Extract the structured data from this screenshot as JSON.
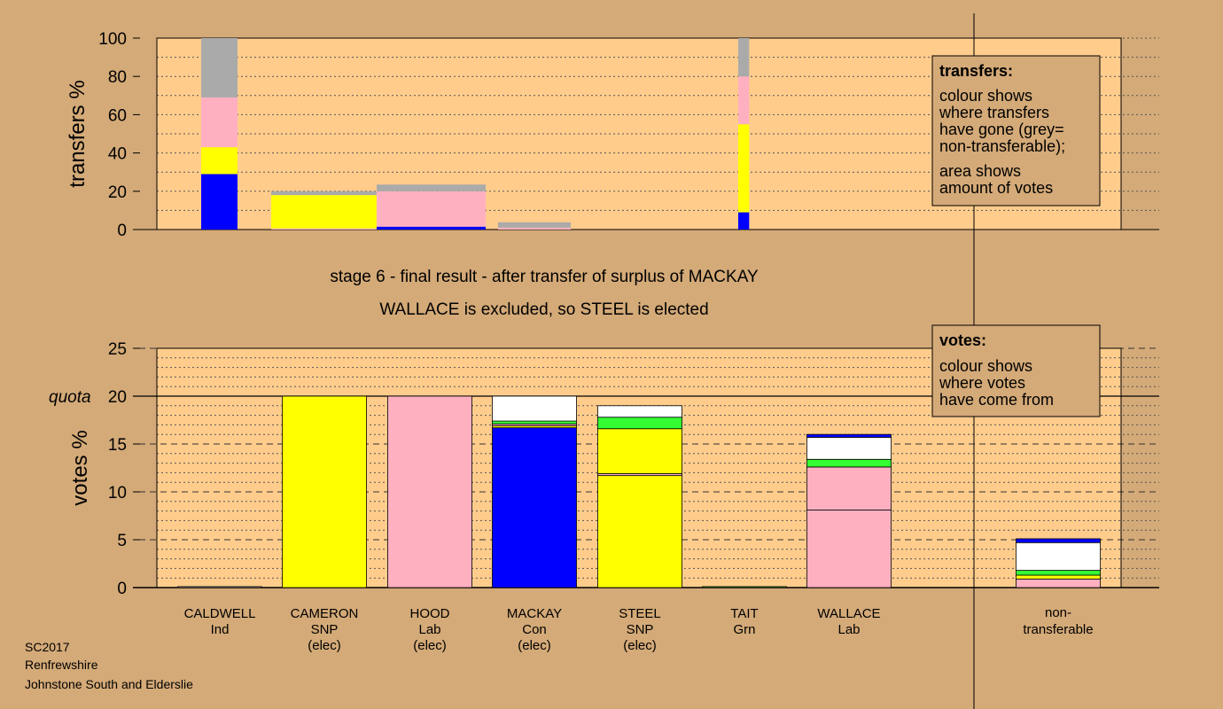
{
  "titles": {
    "stage": "stage 6 - final result - after transfer of surplus of MACKAY",
    "outcome": "WALLACE is excluded, so STEEL is elected"
  },
  "footer": [
    "SC2017",
    "Renfrewshire",
    "Johnstone South and Elderslie"
  ],
  "colors": {
    "background": "#d4aa78",
    "plot": "#ffcc8c",
    "Con": "#0000ff",
    "SNP": "#ffff00",
    "Lab": "#ffb0c0",
    "Grn": "#33ff33",
    "Ind": "#ffffff",
    "nontransferable": "#aaaaaa"
  },
  "legends": {
    "transfers": {
      "title": "transfers:",
      "lines": [
        "colour shows",
        "where transfers",
        "have gone (grey=",
        "non-transferable);",
        "area shows",
        "amount of votes"
      ]
    },
    "votes": {
      "title": "votes:",
      "lines": [
        "colour shows",
        "where votes",
        "have come from"
      ]
    }
  },
  "chart_data": [
    {
      "type": "bar",
      "stacked": true,
      "ylabel": "transfers %",
      "ylim": [
        0,
        100
      ],
      "yticks": [
        0,
        20,
        40,
        60,
        80,
        100
      ],
      "bars": [
        {
          "label": "CALDWELL",
          "width": 1.0,
          "segments": [
            {
              "party": "Con",
              "value": 29
            },
            {
              "party": "SNP",
              "value": 14
            },
            {
              "party": "Lab",
              "value": 26
            },
            {
              "party": "nontransferable",
              "value": 31
            }
          ]
        },
        {
          "label": "CAMERON",
          "width": 2.9,
          "segments": [
            {
              "party": "Lab",
              "value": 0.6
            },
            {
              "party": "SNP",
              "value": 17.4
            },
            {
              "party": "nontransferable",
              "value": 2
            }
          ]
        },
        {
          "label": "HOOD",
          "width": 3.0,
          "segments": [
            {
              "party": "Con",
              "value": 1.5
            },
            {
              "party": "Lab",
              "value": 18.5
            },
            {
              "party": "nontransferable",
              "value": 3.5
            }
          ]
        },
        {
          "label": "MACKAY",
          "width": 2.0,
          "segments": [
            {
              "party": "Lab",
              "value": 1
            },
            {
              "party": "nontransferable",
              "value": 2.8
            }
          ]
        },
        {
          "label": "TAIT",
          "width": 0.3,
          "segments": [
            {
              "party": "Con",
              "value": 9
            },
            {
              "party": "SNP",
              "value": 46
            },
            {
              "party": "Lab",
              "value": 25
            },
            {
              "party": "nontransferable",
              "value": 20
            }
          ]
        }
      ]
    },
    {
      "type": "bar",
      "stacked": true,
      "ylabel": "votes %",
      "ylim": [
        0,
        25
      ],
      "yticks": [
        0,
        5,
        10,
        15,
        20,
        25
      ],
      "quota": {
        "label": "quota",
        "value": 20
      },
      "categories": [
        {
          "name": "CALDWELL",
          "party": "Ind",
          "note": ""
        },
        {
          "name": "CAMERON",
          "party": "SNP",
          "note": "(elec)"
        },
        {
          "name": "HOOD",
          "party": "Lab",
          "note": "(elec)"
        },
        {
          "name": "MACKAY",
          "party": "Con",
          "note": "(elec)"
        },
        {
          "name": "STEEL",
          "party": "SNP",
          "note": "(elec)"
        },
        {
          "name": "TAIT",
          "party": "Grn",
          "note": ""
        },
        {
          "name": "WALLACE",
          "party": "Lab",
          "note": ""
        },
        {
          "name": "non-",
          "party": "transferable",
          "note": ""
        }
      ],
      "stacks": [
        [
          {
            "party": "Ind",
            "value": 0.1
          }
        ],
        [
          {
            "party": "SNP",
            "value": 20
          }
        ],
        [
          {
            "party": "Lab",
            "value": 20
          }
        ],
        [
          {
            "party": "Con",
            "value": 16.7
          },
          {
            "party": "SNP",
            "value": 0.2
          },
          {
            "party": "Lab",
            "value": 0.2
          },
          {
            "party": "Grn",
            "value": 0.3
          },
          {
            "party": "Ind",
            "value": 2.6
          }
        ],
        [
          {
            "party": "SNP",
            "value": 11.7
          },
          {
            "party": "Lab",
            "value": 0.2
          },
          {
            "party": "SNP",
            "value": 4.7
          },
          {
            "party": "Grn",
            "value": 1.2
          },
          {
            "party": "Ind",
            "value": 1.2
          }
        ],
        [
          {
            "party": "Grn",
            "value": 0.1
          }
        ],
        [
          {
            "party": "Lab",
            "value": 8.1
          },
          {
            "party": "Lab",
            "value": 4.5
          },
          {
            "party": "Grn",
            "value": 0.8
          },
          {
            "party": "Ind",
            "value": 2.3
          },
          {
            "party": "Con",
            "value": 0.3
          }
        ],
        [
          {
            "party": "Lab",
            "value": 0.9
          },
          {
            "party": "SNP",
            "value": 0.4
          },
          {
            "party": "Grn",
            "value": 0.5
          },
          {
            "party": "Ind",
            "value": 2.9
          },
          {
            "party": "Con",
            "value": 0.4
          }
        ]
      ]
    }
  ]
}
